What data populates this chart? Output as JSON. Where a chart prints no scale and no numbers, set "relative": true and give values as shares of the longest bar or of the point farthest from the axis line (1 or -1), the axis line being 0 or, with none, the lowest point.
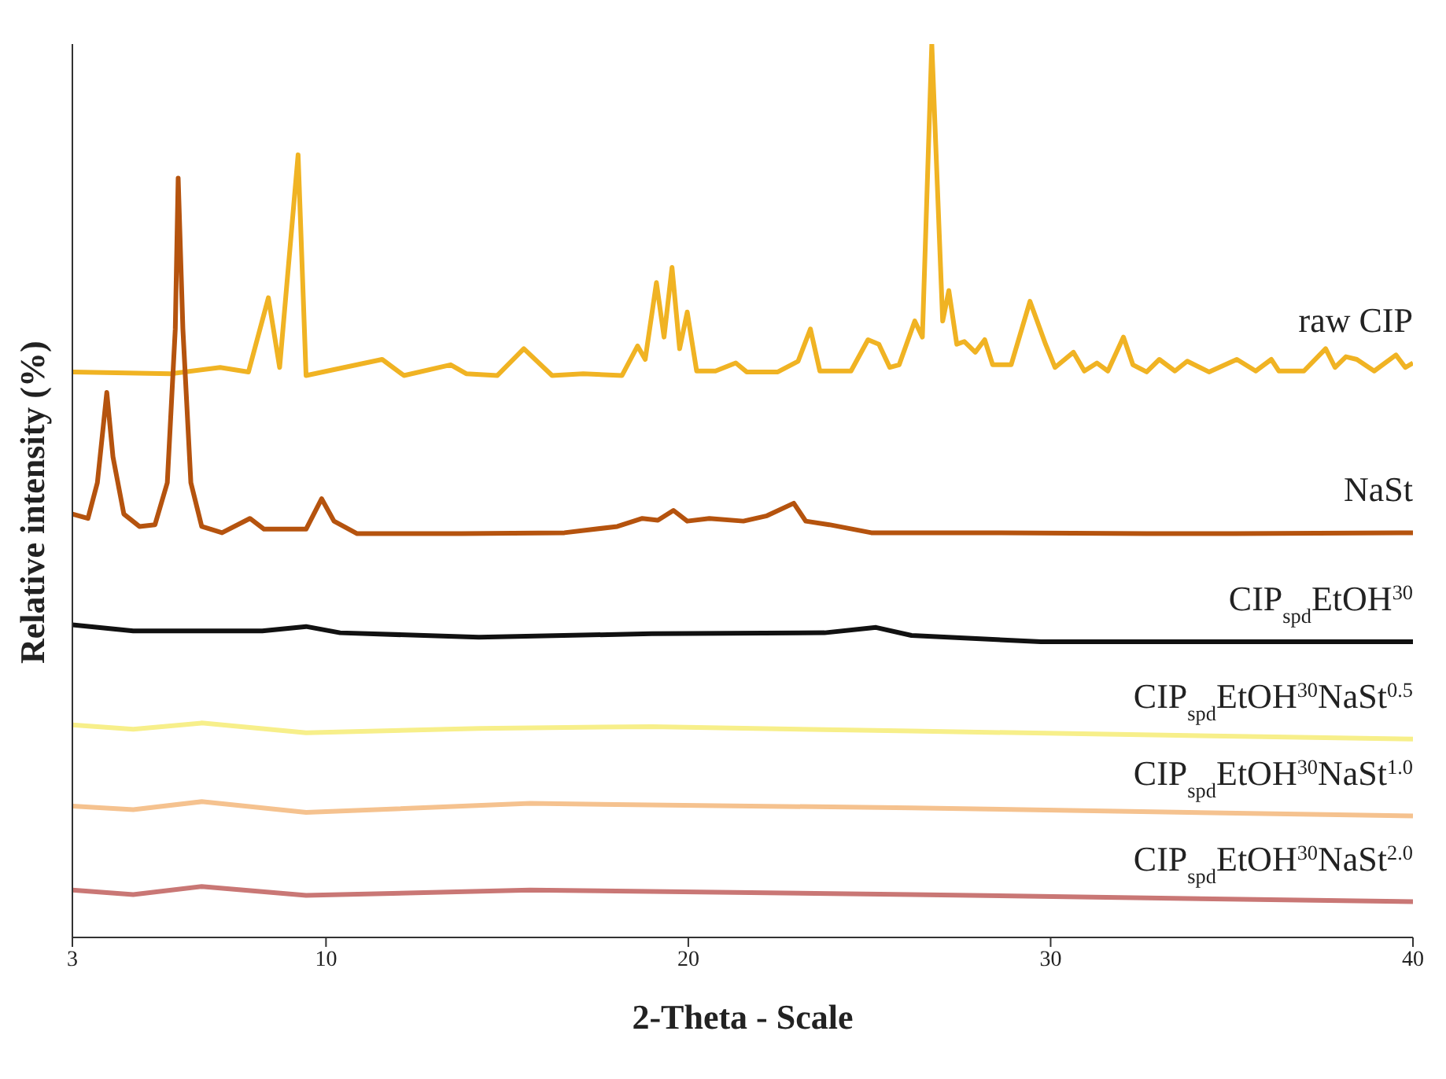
{
  "chart_data": {
    "type": "line",
    "relative": true,
    "xlabel": "2-Theta - Scale",
    "ylabel": "Relative intensity (%)",
    "xlim": [
      3,
      40
    ],
    "xticks": [
      3,
      10,
      20,
      30,
      40
    ],
    "legend": false,
    "grid": false,
    "marker": "none",
    "series": [
      {
        "name": "raw CIP",
        "color": "#f0b323",
        "x": [
          3,
          5.71,
          7.08,
          7.86,
          8.41,
          8.72,
          9.23,
          9.45,
          11.55,
          12.15,
          13.44,
          13.87,
          14.73,
          15.46,
          16.24,
          17.1,
          18.17,
          18.6,
          18.81,
          19.12,
          19.33,
          19.55,
          19.76,
          19.97,
          20.23,
          20.75,
          21.31,
          21.61,
          22.47,
          23.03,
          23.37,
          23.63,
          24.49,
          24.96,
          25.26,
          25.56,
          25.82,
          26.25,
          26.46,
          26.72,
          27.02,
          27.19,
          27.41,
          27.62,
          27.92,
          28.18,
          28.4,
          28.91,
          29.43,
          29.6,
          29.86,
          30.12,
          30.63,
          30.93,
          31.28,
          31.58,
          32.01,
          32.27,
          32.65,
          33,
          33.43,
          33.77,
          34.37,
          35.14,
          35.66,
          36.09,
          36.3,
          36.99,
          37.59,
          37.85,
          38.15,
          38.45,
          38.93,
          39.53,
          39.79,
          40
        ],
        "values": [
          0.633,
          0.631,
          0.638,
          0.633,
          0.716,
          0.638,
          0.876,
          0.629,
          0.647,
          0.629,
          0.641,
          0.631,
          0.629,
          0.659,
          0.629,
          0.631,
          0.629,
          0.662,
          0.647,
          0.733,
          0.672,
          0.75,
          0.659,
          0.7,
          0.634,
          0.634,
          0.643,
          0.633,
          0.633,
          0.645,
          0.681,
          0.634,
          0.634,
          0.669,
          0.664,
          0.638,
          0.641,
          0.69,
          0.672,
          1,
          0.69,
          0.724,
          0.664,
          0.667,
          0.655,
          0.669,
          0.641,
          0.641,
          0.712,
          0.693,
          0.664,
          0.638,
          0.655,
          0.634,
          0.643,
          0.634,
          0.672,
          0.641,
          0.633,
          0.647,
          0.634,
          0.645,
          0.633,
          0.647,
          0.634,
          0.647,
          0.634,
          0.634,
          0.659,
          0.638,
          0.65,
          0.647,
          0.634,
          0.652,
          0.638,
          0.643
        ]
      },
      {
        "name": "NaSt",
        "color": "#b5530e",
        "x": [
          3,
          3.43,
          3.69,
          3.95,
          4.12,
          4.42,
          4.85,
          5.28,
          5.62,
          5.84,
          5.92,
          6.05,
          6.27,
          6.57,
          7.13,
          7.9,
          8.29,
          9.45,
          9.88,
          10.22,
          10.86,
          13.74,
          16.58,
          18.04,
          18.73,
          19.16,
          19.59,
          19.97,
          20.58,
          21.52,
          22.17,
          22.91,
          23.24,
          23.89,
          25.05,
          27.92,
          32.65,
          35.06,
          40
        ],
        "values": [
          0.474,
          0.469,
          0.509,
          0.61,
          0.538,
          0.474,
          0.46,
          0.462,
          0.509,
          0.681,
          0.85,
          0.681,
          0.509,
          0.46,
          0.453,
          0.469,
          0.457,
          0.457,
          0.491,
          0.466,
          0.452,
          0.452,
          0.453,
          0.46,
          0.469,
          0.467,
          0.478,
          0.466,
          0.469,
          0.466,
          0.472,
          0.486,
          0.466,
          0.462,
          0.453,
          0.453,
          0.452,
          0.452,
          0.453
        ]
      },
      {
        "name": "CIP$_{spd}$EtOH$^{30}$",
        "color": "#111111",
        "x": [
          3,
          4.68,
          8.24,
          9.45,
          10.39,
          14.22,
          18.99,
          23.76,
          25.18,
          26.16,
          29.73,
          40
        ],
        "values": [
          0.35,
          0.343,
          0.343,
          0.348,
          0.341,
          0.336,
          0.34,
          0.341,
          0.347,
          0.338,
          0.331,
          0.331
        ]
      },
      {
        "name": "CIP$_{spd}$EtOH$^{30}$NaSt$^{0.5}$",
        "color": "#f7ef8a",
        "x": [
          3,
          4.68,
          6.57,
          9.45,
          14.22,
          18.99,
          26.16,
          40
        ],
        "values": [
          0.238,
          0.233,
          0.24,
          0.229,
          0.234,
          0.236,
          0.231,
          0.222
        ]
      },
      {
        "name": "CIP$_{spd}$EtOH$^{30}$NaSt$^{1.0}$",
        "color": "#f5c28f",
        "x": [
          3,
          4.68,
          6.57,
          9.45,
          15.63,
          26.16,
          40
        ],
        "values": [
          0.147,
          0.143,
          0.152,
          0.14,
          0.15,
          0.145,
          0.136
        ]
      },
      {
        "name": "CIP$_{spd}$EtOH$^{30}$NaSt$^{2.0}$",
        "color": "#c97775",
        "x": [
          3,
          4.68,
          6.57,
          9.45,
          15.63,
          26.16,
          40
        ],
        "values": [
          0.053,
          0.048,
          0.057,
          0.047,
          0.053,
          0.048,
          0.04
        ]
      }
    ]
  }
}
